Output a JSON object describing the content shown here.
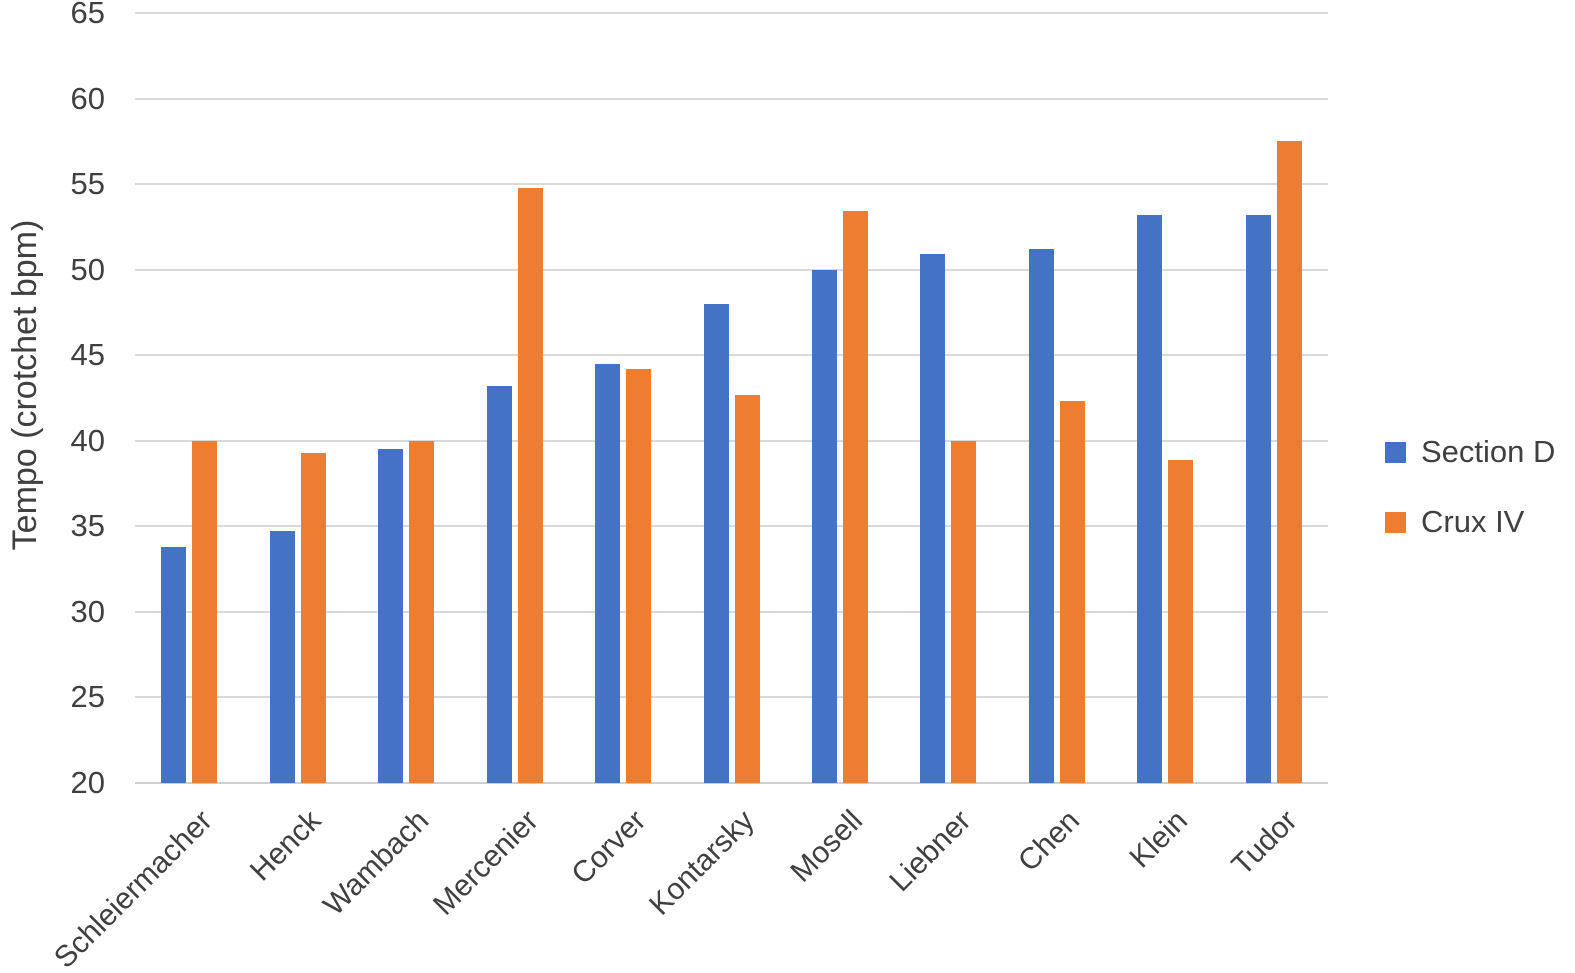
{
  "chart_data": {
    "type": "bar",
    "title": "",
    "xlabel": "",
    "ylabel": "Tempo (crotchet bpm)",
    "categories": [
      "Schleiermacher",
      "Henck",
      "Wambach",
      "Mercenier",
      "Corver",
      "Kontarsky",
      "Mosell",
      "Liebner",
      "Chen",
      "Klein",
      "Tudor"
    ],
    "series": [
      {
        "name": "Section D",
        "color": "#4472C4",
        "values": [
          33.8,
          34.7,
          39.5,
          43.2,
          44.5,
          48.0,
          50.0,
          50.9,
          51.2,
          53.2,
          53.2
        ]
      },
      {
        "name": "Crux IV",
        "color": "#ED7D31",
        "values": [
          40.0,
          39.3,
          40.0,
          54.8,
          44.2,
          42.7,
          53.4,
          40.0,
          42.3,
          38.9,
          57.5
        ]
      }
    ],
    "y_axis": {
      "min": 20,
      "max": 65,
      "step": 5,
      "ticks": [
        65,
        60,
        55,
        50,
        45,
        40,
        35,
        30,
        25,
        20
      ]
    },
    "ylim": [
      20,
      65
    ],
    "grid": "horizontal",
    "gridline_color": "#d9d9d9",
    "text_color": "#404040",
    "legend_position": "right",
    "legend_entries": [
      "Section D",
      "Crux IV"
    ]
  }
}
